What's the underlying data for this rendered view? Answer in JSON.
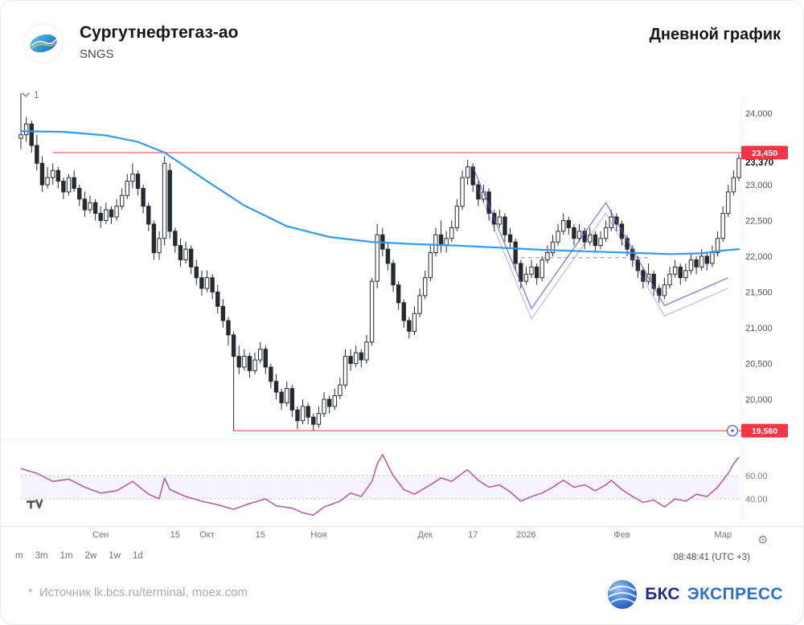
{
  "header": {
    "title": "Сургутнефтегаз-ао",
    "ticker": "SNGS",
    "right_title": "Дневной график"
  },
  "chart": {
    "interval_label": "1",
    "clock": "08:48:41 (UTC +3)",
    "range_buttons": [
      "m",
      "3m",
      "1m",
      "2w",
      "1w",
      "1d"
    ]
  },
  "chart_data": [
    {
      "type": "candlestick",
      "title": "Сургутнефтегаз-ао (SNGS), дневной график",
      "colors": {
        "up": "#ffffff",
        "down": "#262a31",
        "outline": "#262a31"
      },
      "price_axis": {
        "ticks": [
          {
            "label": "24,000",
            "value": 24000
          },
          {
            "label": "23,000",
            "value": 23000
          },
          {
            "label": "22,500",
            "value": 22500
          },
          {
            "label": "22,000",
            "value": 22000
          },
          {
            "label": "21,500",
            "value": 21500
          },
          {
            "label": "21,000",
            "value": 21000
          },
          {
            "label": "20,500",
            "value": 20500
          },
          {
            "label": "20,000",
            "value": 20000
          }
        ]
      },
      "last_price": 23370,
      "last_price_label": "23,370",
      "levels": [
        {
          "value": 23450,
          "label": "23,450",
          "color": "#f23645",
          "start_index": 6
        },
        {
          "value": 19560,
          "label": "19,560",
          "color": "#f23645",
          "start_index": 40
        }
      ],
      "x_ticks": [
        {
          "label": "Сен",
          "index": 15
        },
        {
          "label": "15",
          "index": 29
        },
        {
          "label": "Окт",
          "index": 35
        },
        {
          "label": "15",
          "index": 45
        },
        {
          "label": "Ноя",
          "index": 56
        },
        {
          "label": "Дек",
          "index": 76
        },
        {
          "label": "17",
          "index": 85
        },
        {
          "label": "2026",
          "index": 95
        },
        {
          "label": "Фев",
          "index": 113
        },
        {
          "label": "Мар",
          "index": 132
        }
      ],
      "ma": {
        "name": "MA",
        "color": "#2f9bf5",
        "points": [
          [
            0,
            23750
          ],
          [
            8,
            23740
          ],
          [
            16,
            23690
          ],
          [
            22,
            23600
          ],
          [
            27,
            23450
          ],
          [
            34,
            23100
          ],
          [
            42,
            22710
          ],
          [
            50,
            22420
          ],
          [
            58,
            22270
          ],
          [
            66,
            22200
          ],
          [
            74,
            22170
          ],
          [
            82,
            22150
          ],
          [
            90,
            22120
          ],
          [
            98,
            22090
          ],
          [
            106,
            22070
          ],
          [
            114,
            22050
          ],
          [
            122,
            22030
          ],
          [
            128,
            22040
          ],
          [
            132,
            22080
          ],
          [
            135,
            22100
          ]
        ]
      },
      "drawing": {
        "color": "#7352c5",
        "zigzag": [
          [
            85,
            23250
          ],
          [
            96,
            21270
          ],
          [
            110,
            22750
          ],
          [
            121,
            21310
          ],
          [
            133,
            21700
          ]
        ],
        "dashed_segment": {
          "price": 21980,
          "from_index": 94,
          "to_index": 118
        }
      },
      "candles": [
        [
          23650,
          24280,
          23500,
          23700
        ],
        [
          23700,
          23950,
          23600,
          23850
        ],
        [
          23850,
          23900,
          23450,
          23550
        ],
        [
          23550,
          23700,
          23200,
          23300
        ],
        [
          23300,
          23400,
          22900,
          23000
        ],
        [
          23000,
          23250,
          22950,
          23100
        ],
        [
          23100,
          23300,
          23000,
          23200
        ],
        [
          23200,
          23250,
          22950,
          23050
        ],
        [
          23050,
          23100,
          22800,
          22900
        ],
        [
          22900,
          23150,
          22850,
          23100
        ],
        [
          23100,
          23200,
          22900,
          22950
        ],
        [
          22950,
          23000,
          22700,
          22800
        ],
        [
          22800,
          22900,
          22550,
          22650
        ],
        [
          22650,
          22850,
          22600,
          22750
        ],
        [
          22750,
          22800,
          22500,
          22600
        ],
        [
          22600,
          22700,
          22400,
          22500
        ],
        [
          22500,
          22750,
          22450,
          22650
        ],
        [
          22650,
          22700,
          22450,
          22550
        ],
        [
          22550,
          22800,
          22500,
          22700
        ],
        [
          22700,
          22950,
          22650,
          22850
        ],
        [
          22850,
          23150,
          22800,
          23050
        ],
        [
          23050,
          23300,
          22950,
          23150
        ],
        [
          23150,
          23200,
          22850,
          22950
        ],
        [
          22950,
          23000,
          22600,
          22700
        ],
        [
          22700,
          22750,
          22350,
          22450
        ],
        [
          22450,
          22500,
          21950,
          22050
        ],
        [
          22050,
          22350,
          21950,
          22250
        ],
        [
          22250,
          23400,
          22150,
          23300
        ],
        [
          23200,
          23300,
          22250,
          22350
        ],
        [
          22350,
          22400,
          22050,
          22150
        ],
        [
          22150,
          22250,
          21850,
          21950
        ],
        [
          21950,
          22200,
          21900,
          22100
        ],
        [
          22100,
          22150,
          21750,
          21850
        ],
        [
          21850,
          21950,
          21600,
          21700
        ],
        [
          21700,
          21800,
          21450,
          21550
        ],
        [
          21550,
          21800,
          21500,
          21700
        ],
        [
          21700,
          21750,
          21400,
          21500
        ],
        [
          21500,
          21600,
          21200,
          21300
        ],
        [
          21300,
          21400,
          21000,
          21100
        ],
        [
          21100,
          21150,
          20750,
          20900
        ],
        [
          20900,
          20950,
          19560,
          20600
        ],
        [
          20600,
          20750,
          20350,
          20450
        ],
        [
          20450,
          20700,
          20400,
          20600
        ],
        [
          20600,
          20650,
          20300,
          20400
        ],
        [
          20400,
          20650,
          20350,
          20550
        ],
        [
          20550,
          20800,
          20500,
          20700
        ],
        [
          20700,
          20750,
          20350,
          20450
        ],
        [
          20450,
          20500,
          20150,
          20250
        ],
        [
          20250,
          20350,
          20000,
          20100
        ],
        [
          20100,
          20150,
          19850,
          19950
        ],
        [
          19950,
          20250,
          19900,
          20150
        ],
        [
          20150,
          20200,
          19750,
          19850
        ],
        [
          19850,
          19900,
          19580,
          19700
        ],
        [
          19700,
          20000,
          19650,
          19900
        ],
        [
          19900,
          19950,
          19650,
          19750
        ],
        [
          19750,
          19800,
          19560,
          19650
        ],
        [
          19650,
          19900,
          19600,
          19800
        ],
        [
          19800,
          20100,
          19750,
          20000
        ],
        [
          20000,
          20050,
          19800,
          19900
        ],
        [
          19900,
          20150,
          19850,
          20050
        ],
        [
          20050,
          20300,
          20000,
          20200
        ],
        [
          20200,
          20700,
          20150,
          20600
        ],
        [
          20600,
          20700,
          20400,
          20500
        ],
        [
          20500,
          20750,
          20450,
          20650
        ],
        [
          20650,
          20700,
          20450,
          20550
        ],
        [
          20550,
          20900,
          20500,
          20800
        ],
        [
          20800,
          21700,
          20750,
          21650
        ],
        [
          21650,
          22450,
          21550,
          22300
        ],
        [
          22300,
          22400,
          22000,
          22100
        ],
        [
          22100,
          22200,
          21800,
          21900
        ],
        [
          21900,
          21950,
          21500,
          21600
        ],
        [
          21600,
          21650,
          21250,
          21350
        ],
        [
          21350,
          21400,
          21000,
          21100
        ],
        [
          21100,
          21150,
          20850,
          20950
        ],
        [
          20950,
          21300,
          20900,
          21200
        ],
        [
          21200,
          21550,
          21150,
          21450
        ],
        [
          21450,
          21800,
          21400,
          21700
        ],
        [
          21700,
          22150,
          21650,
          22050
        ],
        [
          22050,
          22400,
          22000,
          22300
        ],
        [
          22300,
          22500,
          22050,
          22150
        ],
        [
          22150,
          22350,
          22050,
          22250
        ],
        [
          22250,
          22500,
          22200,
          22400
        ],
        [
          22400,
          22800,
          22350,
          22700
        ],
        [
          22700,
          23200,
          22650,
          23100
        ],
        [
          23100,
          23350,
          23000,
          23250
        ],
        [
          23250,
          23300,
          22900,
          23000
        ],
        [
          23000,
          23050,
          22700,
          22800
        ],
        [
          22800,
          23000,
          22750,
          22900
        ],
        [
          22900,
          22950,
          22500,
          22600
        ],
        [
          22600,
          22650,
          22350,
          22450
        ],
        [
          22450,
          22650,
          22400,
          22550
        ],
        [
          22550,
          22600,
          22200,
          22300
        ],
        [
          22300,
          22400,
          22100,
          22200
        ],
        [
          22200,
          22250,
          21800,
          21900
        ],
        [
          21900,
          21950,
          21550,
          21650
        ],
        [
          21650,
          21850,
          21600,
          21750
        ],
        [
          21750,
          21950,
          21700,
          21850
        ],
        [
          21850,
          21900,
          21600,
          21700
        ],
        [
          21700,
          22000,
          21650,
          21950
        ],
        [
          21950,
          22150,
          21900,
          22050
        ],
        [
          22050,
          22300,
          22000,
          22200
        ],
        [
          22200,
          22450,
          22150,
          22350
        ],
        [
          22350,
          22600,
          22300,
          22500
        ],
        [
          22500,
          22550,
          22300,
          22400
        ],
        [
          22400,
          22450,
          22150,
          22250
        ],
        [
          22250,
          22450,
          22200,
          22350
        ],
        [
          22350,
          22400,
          22100,
          22200
        ],
        [
          22200,
          22400,
          22150,
          22300
        ],
        [
          22300,
          22350,
          22050,
          22150
        ],
        [
          22150,
          22350,
          22100,
          22250
        ],
        [
          22250,
          22500,
          22200,
          22400
        ],
        [
          22400,
          22650,
          22350,
          22550
        ],
        [
          22550,
          22600,
          22350,
          22450
        ],
        [
          22450,
          22500,
          22150,
          22250
        ],
        [
          22250,
          22300,
          22000,
          22100
        ],
        [
          22100,
          22150,
          21850,
          21950
        ],
        [
          21950,
          22000,
          21700,
          21800
        ],
        [
          21800,
          21850,
          21550,
          21650
        ],
        [
          21650,
          21900,
          21600,
          21750
        ],
        [
          21750,
          21800,
          21450,
          21550
        ],
        [
          21550,
          21600,
          21350,
          21450
        ],
        [
          21450,
          21700,
          21400,
          21600
        ],
        [
          21600,
          21850,
          21550,
          21750
        ],
        [
          21750,
          21950,
          21700,
          21850
        ],
        [
          21850,
          21900,
          21600,
          21700
        ],
        [
          21700,
          21900,
          21650,
          21800
        ],
        [
          21800,
          22050,
          21750,
          21950
        ],
        [
          21950,
          22000,
          21750,
          21850
        ],
        [
          21850,
          22100,
          21800,
          22000
        ],
        [
          22000,
          22050,
          21800,
          21900
        ],
        [
          21900,
          22150,
          21850,
          22050
        ],
        [
          22050,
          22350,
          22000,
          22250
        ],
        [
          22250,
          22700,
          22200,
          22600
        ],
        [
          22600,
          23000,
          22550,
          22900
        ],
        [
          22900,
          23200,
          22850,
          23100
        ],
        [
          23100,
          23430,
          23050,
          23370
        ]
      ]
    },
    {
      "type": "line",
      "name": "RSI",
      "color": "#b0629f",
      "levels": [
        {
          "value": 60,
          "label": "60.00"
        },
        {
          "value": 40,
          "label": "40.00"
        }
      ],
      "points": [
        [
          0,
          66
        ],
        [
          3,
          62
        ],
        [
          6,
          55
        ],
        [
          9,
          57
        ],
        [
          12,
          50
        ],
        [
          15,
          45
        ],
        [
          18,
          47
        ],
        [
          21,
          55
        ],
        [
          24,
          44
        ],
        [
          26,
          40
        ],
        [
          27,
          58
        ],
        [
          28,
          48
        ],
        [
          31,
          42
        ],
        [
          34,
          38
        ],
        [
          37,
          35
        ],
        [
          40,
          31
        ],
        [
          43,
          36
        ],
        [
          46,
          40
        ],
        [
          48,
          34
        ],
        [
          51,
          32
        ],
        [
          53,
          28
        ],
        [
          55,
          26
        ],
        [
          57,
          33
        ],
        [
          60,
          38
        ],
        [
          62,
          45
        ],
        [
          64,
          42
        ],
        [
          66,
          55
        ],
        [
          67,
          70
        ],
        [
          68,
          78
        ],
        [
          70,
          60
        ],
        [
          72,
          48
        ],
        [
          74,
          44
        ],
        [
          77,
          52
        ],
        [
          79,
          58
        ],
        [
          81,
          55
        ],
        [
          83,
          62
        ],
        [
          84,
          65
        ],
        [
          86,
          56
        ],
        [
          88,
          50
        ],
        [
          90,
          52
        ],
        [
          92,
          46
        ],
        [
          94,
          38
        ],
        [
          96,
          42
        ],
        [
          98,
          45
        ],
        [
          100,
          50
        ],
        [
          102,
          56
        ],
        [
          104,
          50
        ],
        [
          106,
          52
        ],
        [
          108,
          47
        ],
        [
          110,
          52
        ],
        [
          111,
          56
        ],
        [
          113,
          48
        ],
        [
          115,
          42
        ],
        [
          117,
          37
        ],
        [
          119,
          39
        ],
        [
          121,
          33
        ],
        [
          123,
          40
        ],
        [
          125,
          38
        ],
        [
          127,
          44
        ],
        [
          129,
          42
        ],
        [
          131,
          50
        ],
        [
          132,
          56
        ],
        [
          133,
          62
        ],
        [
          134,
          70
        ],
        [
          135,
          76
        ]
      ]
    }
  ],
  "footer": {
    "source_star": "*",
    "source_note": "Источник lk.bcs.ru/terminal, moex.com",
    "brand": {
      "bold": "БКС",
      "light": "ЭКСПРЕСС"
    }
  }
}
